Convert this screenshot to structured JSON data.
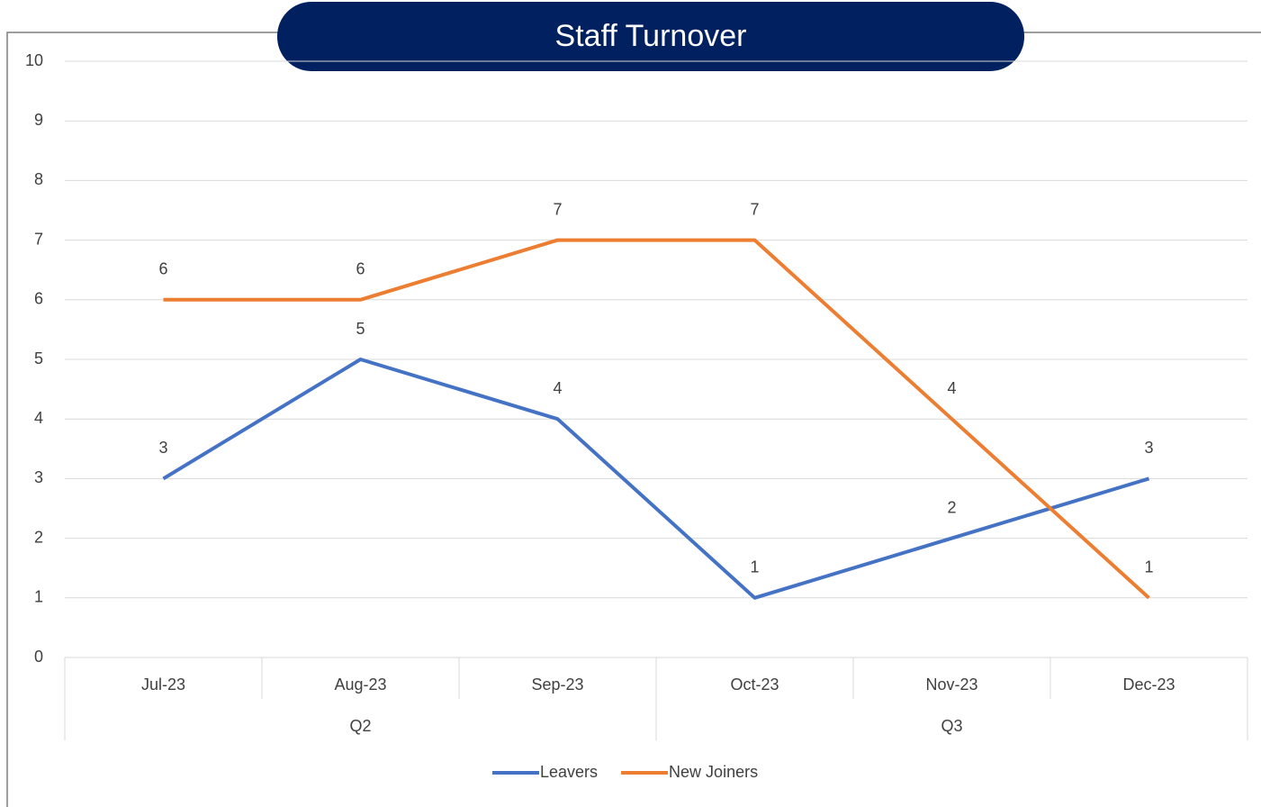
{
  "chart_data": {
    "type": "line",
    "title": "Staff Turnover",
    "categories": [
      "Jul-23",
      "Aug-23",
      "Sep-23",
      "Oct-23",
      "Nov-23",
      "Dec-23"
    ],
    "groups": [
      {
        "label": "Q2",
        "count": 3
      },
      {
        "label": "Q3",
        "count": 3
      }
    ],
    "series": [
      {
        "name": "Leavers",
        "color": "#4472c4",
        "values": [
          3,
          5,
          4,
          1,
          2,
          3
        ]
      },
      {
        "name": "New Joiners",
        "color": "#ed7d31",
        "values": [
          6,
          6,
          7,
          7,
          4,
          1
        ]
      }
    ],
    "ylim": [
      0,
      10
    ],
    "yticks": [
      0,
      1,
      2,
      3,
      4,
      5,
      6,
      7,
      8,
      9,
      10
    ],
    "grid": true,
    "legend": "bottom"
  }
}
